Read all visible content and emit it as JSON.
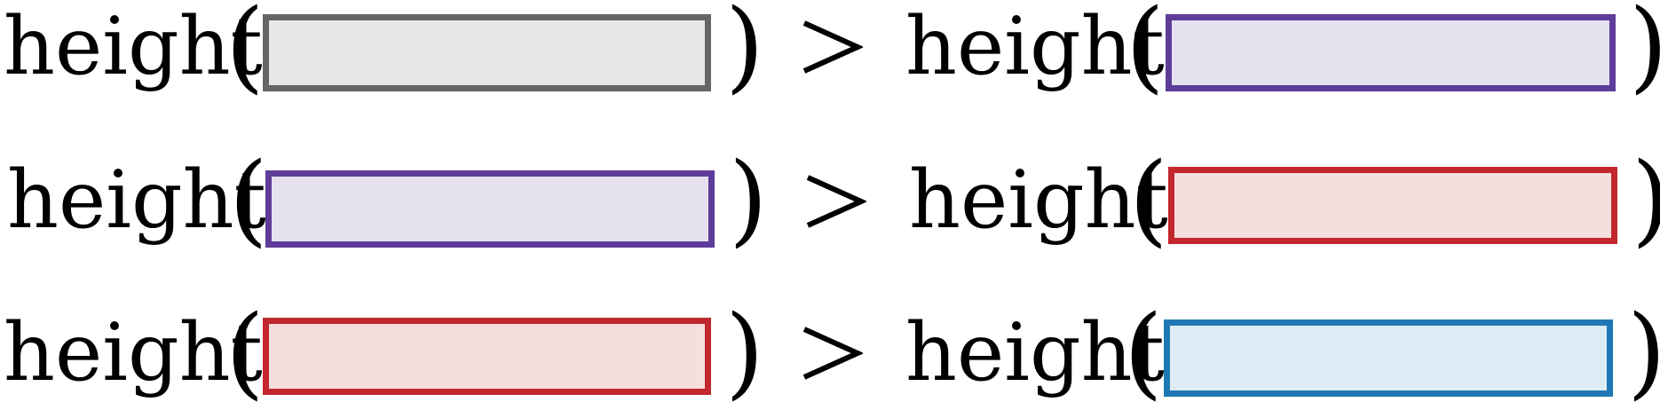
{
  "function_name": "height",
  "open_paren": "(",
  "close_paren": ")",
  "operator": ">",
  "boxes": {
    "gray": {
      "border": "#666666",
      "fill": "#e6e6e6"
    },
    "purple": {
      "border": "#5e3c99",
      "fill": "#e5e1ef"
    },
    "red": {
      "border": "#c1272d",
      "fill": "#f5dede"
    },
    "blue": {
      "border": "#1f78b4",
      "fill": "#ddebf5"
    }
  },
  "rows": [
    {
      "left": "gray",
      "right": "purple"
    },
    {
      "left": "purple",
      "right": "red"
    },
    {
      "left": "red",
      "right": "blue"
    }
  ]
}
